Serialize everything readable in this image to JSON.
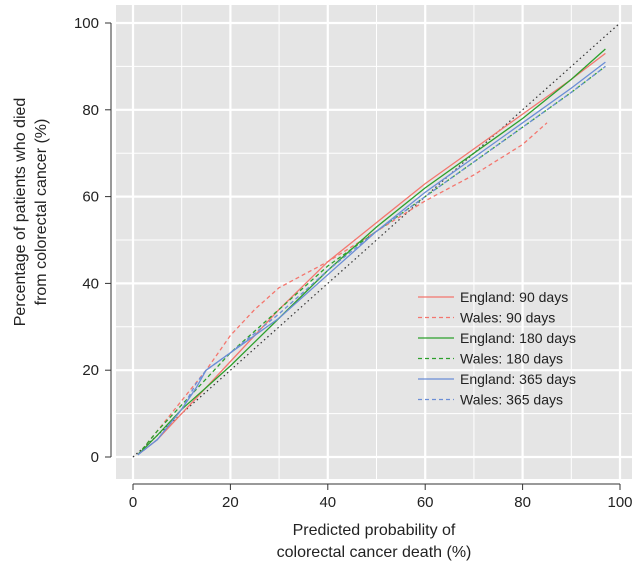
{
  "chart_data": {
    "type": "line",
    "xlabel": [
      "Predicted probability of",
      "colorectal cancer death (%)"
    ],
    "ylabel": [
      "Percentage of patients who died",
      "from colorectal cancer (%)"
    ],
    "xlim": [
      0,
      100
    ],
    "ylim": [
      0,
      100
    ],
    "x_ticks": [
      0,
      20,
      40,
      60,
      80,
      100
    ],
    "y_ticks": [
      0,
      20,
      40,
      60,
      80,
      100
    ],
    "grid": true,
    "background": "#e5e5e5",
    "legend_position": "bottom-right",
    "reference_line": {
      "style": "dotted",
      "color": "#333333",
      "x": [
        0,
        100
      ],
      "y": [
        0,
        100
      ]
    },
    "series": [
      {
        "name": "England: 90 days",
        "color": "#f4766e",
        "dash": "solid",
        "x": [
          1,
          5,
          10,
          15,
          20,
          30,
          40,
          50,
          60,
          70,
          80,
          90,
          97
        ],
        "y": [
          0.5,
          4,
          10,
          16,
          22,
          34,
          45,
          54,
          63,
          71,
          79,
          87,
          93
        ]
      },
      {
        "name": "Wales: 90 days",
        "color": "#f4766e",
        "dash": "dashed",
        "x": [
          1,
          5,
          10,
          15,
          20,
          25,
          30,
          40,
          50,
          60,
          70,
          80,
          85
        ],
        "y": [
          0.5,
          6,
          13,
          20,
          28,
          34,
          39,
          45,
          52,
          59,
          65,
          72,
          77
        ]
      },
      {
        "name": "England: 180 days",
        "color": "#2ca02c",
        "dash": "solid",
        "x": [
          1,
          5,
          10,
          15,
          20,
          30,
          40,
          50,
          60,
          70,
          80,
          90,
          97
        ],
        "y": [
          0.5,
          5,
          11,
          16,
          21,
          32,
          43,
          53,
          62,
          70,
          78,
          87,
          94
        ]
      },
      {
        "name": "Wales: 180 days",
        "color": "#2ca02c",
        "dash": "dashed",
        "x": [
          1,
          5,
          10,
          15,
          20,
          30,
          40,
          50,
          60,
          70,
          80,
          90,
          97
        ],
        "y": [
          0.5,
          6,
          12,
          18,
          24,
          34,
          44,
          52,
          60,
          68,
          76,
          84,
          90
        ]
      },
      {
        "name": "England: 365 days",
        "color": "#6b8ed6",
        "dash": "solid",
        "x": [
          1,
          5,
          10,
          13,
          15,
          20,
          30,
          40,
          50,
          60,
          70,
          80,
          90,
          97
        ],
        "y": [
          0.5,
          4,
          11,
          16,
          20,
          24,
          32,
          42,
          52,
          61,
          69,
          77,
          85,
          91
        ]
      },
      {
        "name": "Wales: 365 days",
        "color": "#6b8ed6",
        "dash": "dashed",
        "x": [
          1,
          5,
          10,
          13,
          15,
          20,
          30,
          40,
          50,
          60,
          70,
          80,
          90,
          97
        ],
        "y": [
          0.5,
          4,
          11,
          17,
          20,
          24,
          33,
          43,
          52,
          60,
          68,
          76,
          84,
          90
        ]
      }
    ]
  }
}
